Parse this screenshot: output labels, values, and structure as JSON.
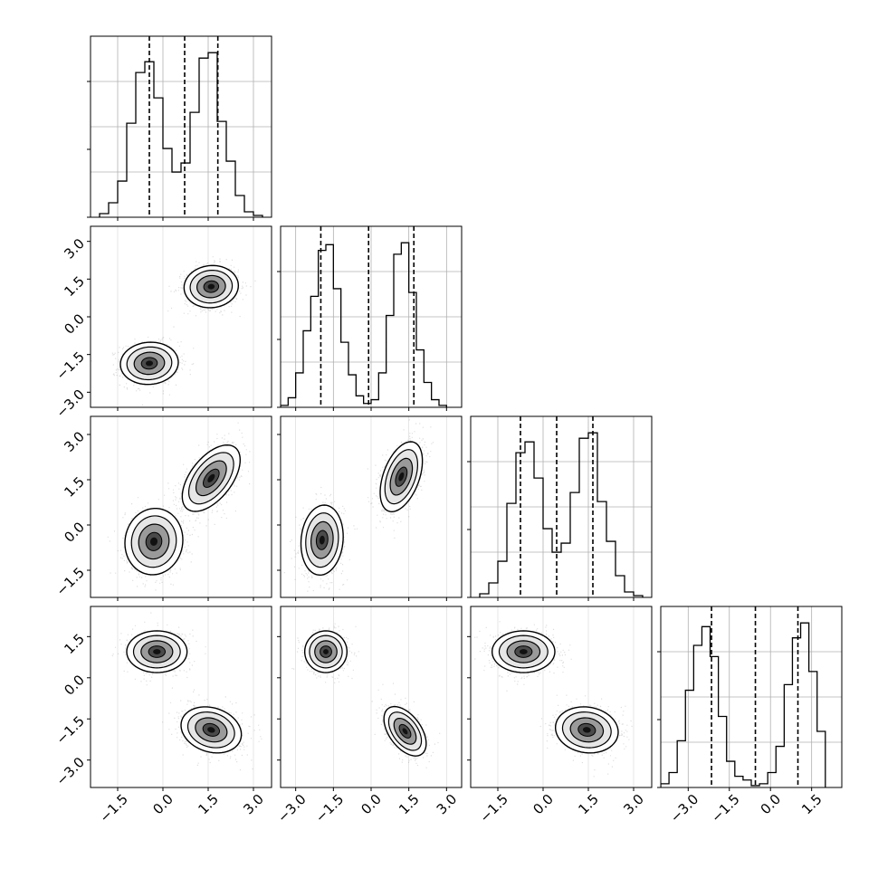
{
  "chart_data": {
    "type": "corner",
    "title": "",
    "n_params": 4,
    "parameter_labels": [
      "",
      "",
      "",
      ""
    ],
    "grid": true,
    "colors": {
      "line": "#000000",
      "grid": "#b0b0b0",
      "points": "#000000"
    },
    "ranges": [
      [
        -2.4,
        3.6
      ],
      [
        -3.6,
        3.6
      ],
      [
        -2.4,
        3.6
      ],
      [
        -4.0,
        2.6
      ]
    ],
    "x_tick_labels": [
      [
        "−1.5",
        "0.0",
        "1.5",
        "3.0"
      ],
      [
        "−3.0",
        "−1.5",
        "0.0",
        "1.5",
        "3.0"
      ],
      [
        "−1.5",
        "0.0",
        "1.5",
        "3.0"
      ],
      [
        "−3.0",
        "−1.5",
        "0.0",
        "1.5"
      ]
    ],
    "x_ticks": [
      [
        -1.5,
        0.0,
        1.5,
        3.0
      ],
      [
        -3.0,
        -1.5,
        0.0,
        1.5,
        3.0
      ],
      [
        -1.5,
        0.0,
        1.5,
        3.0
      ],
      [
        -3.0,
        -1.5,
        0.0,
        1.5
      ]
    ],
    "y_tick_labels": [
      null,
      [
        "3.0",
        "1.5",
        "0.0",
        "−1.5",
        "−3.0"
      ],
      [
        "3.0",
        "1.5",
        "0.0",
        "−1.5"
      ],
      [
        "1.5",
        "0.0",
        "−1.5",
        "−3.0"
      ]
    ],
    "y_ticks": [
      null,
      [
        3.0,
        1.5,
        0.0,
        -1.5,
        -3.0
      ],
      [
        3.0,
        1.5,
        0.0,
        -1.5
      ],
      [
        1.5,
        0.0,
        -1.5,
        -3.0
      ]
    ],
    "histograms": [
      {
        "param": 0,
        "bin_edges": [
          -2.1,
          -1.8,
          -1.5,
          -1.2,
          -0.9,
          -0.6,
          -0.3,
          0.0,
          0.3,
          0.6,
          0.9,
          1.2,
          1.5,
          1.8,
          2.1,
          2.4,
          2.7,
          3.0,
          3.3
        ],
        "counts": [
          2,
          8,
          20,
          52,
          80,
          86,
          66,
          38,
          25,
          30,
          58,
          88,
          91,
          53,
          31,
          12,
          3,
          1
        ],
        "quantiles": [
          -0.45,
          0.72,
          1.82
        ]
      },
      {
        "param": 1,
        "bin_edges": [
          -3.6,
          -3.3,
          -3.0,
          -2.7,
          -2.4,
          -2.1,
          -1.8,
          -1.5,
          -1.2,
          -0.9,
          -0.6,
          -0.3,
          0.0,
          0.3,
          0.6,
          0.9,
          1.2,
          1.5,
          1.8,
          2.1,
          2.4,
          2.7,
          3.0
        ],
        "counts": [
          1,
          5,
          18,
          40,
          58,
          82,
          85,
          62,
          34,
          17,
          6,
          2,
          4,
          18,
          48,
          80,
          86,
          60,
          30,
          13,
          4,
          1
        ],
        "quantiles": [
          -2.0,
          -0.1,
          1.7
        ]
      },
      {
        "param": 2,
        "bin_edges": [
          -2.1,
          -1.8,
          -1.5,
          -1.2,
          -0.9,
          -0.6,
          -0.3,
          0.0,
          0.3,
          0.6,
          0.9,
          1.2,
          1.5,
          1.8,
          2.1,
          2.4,
          2.7,
          3.0,
          3.3
        ],
        "counts": [
          2,
          8,
          20,
          52,
          80,
          86,
          66,
          38,
          25,
          30,
          58,
          88,
          91,
          53,
          31,
          12,
          3,
          1
        ],
        "quantiles": [
          -0.75,
          0.45,
          1.65
        ]
      },
      {
        "param": 3,
        "bin_edges": [
          -4.0,
          -3.7,
          -3.4,
          -3.1,
          -2.8,
          -2.5,
          -2.2,
          -1.9,
          -1.6,
          -1.3,
          -1.0,
          -0.7,
          -0.4,
          -0.1,
          0.2,
          0.5,
          0.8,
          1.1,
          1.4,
          1.7,
          2.0
        ],
        "counts": [
          2,
          8,
          25,
          52,
          76,
          86,
          70,
          38,
          14,
          6,
          4,
          1,
          2,
          8,
          22,
          55,
          80,
          88,
          62,
          30
        ],
        "quantiles": [
          -2.15,
          -0.55,
          1.0
        ]
      }
    ],
    "scatter_panels": [
      {
        "row": 1,
        "col": 0,
        "modes": [
          {
            "center": [
              -0.45,
              -1.85
            ],
            "sigma": [
              0.48,
              0.42
            ],
            "rho": 0.05
          },
          {
            "center": [
              1.6,
              1.2
            ],
            "sigma": [
              0.45,
              0.42
            ],
            "rho": 0.05
          }
        ]
      },
      {
        "row": 2,
        "col": 0,
        "modes": [
          {
            "center": [
              -0.3,
              -0.55
            ],
            "sigma": [
              0.48,
              0.55
            ],
            "rho": 0.05
          },
          {
            "center": [
              1.6,
              1.55
            ],
            "sigma": [
              0.48,
              0.55
            ],
            "rho": 0.55
          }
        ]
      },
      {
        "row": 2,
        "col": 1,
        "modes": [
          {
            "center": [
              -1.95,
              -0.5
            ],
            "sigma": [
              0.42,
              0.58
            ],
            "rho": 0.1
          },
          {
            "center": [
              1.2,
              1.6
            ],
            "sigma": [
              0.42,
              0.58
            ],
            "rho": 0.45
          }
        ]
      },
      {
        "row": 3,
        "col": 0,
        "modes": [
          {
            "center": [
              -0.2,
              0.95
            ],
            "sigma": [
              0.5,
              0.38
            ],
            "rho": 0.0
          },
          {
            "center": [
              1.6,
              -1.9
            ],
            "sigma": [
              0.5,
              0.42
            ],
            "rho": -0.2
          }
        ]
      },
      {
        "row": 3,
        "col": 1,
        "modes": [
          {
            "center": [
              -1.8,
              0.95
            ],
            "sigma": [
              0.42,
              0.38
            ],
            "rho": 0.0
          },
          {
            "center": [
              1.35,
              -1.95
            ],
            "sigma": [
              0.42,
              0.45
            ],
            "rho": -0.5
          }
        ]
      },
      {
        "row": 3,
        "col": 2,
        "modes": [
          {
            "center": [
              -0.65,
              0.95
            ],
            "sigma": [
              0.52,
              0.38
            ],
            "rho": 0.0
          },
          {
            "center": [
              1.45,
              -1.9
            ],
            "sigma": [
              0.52,
              0.42
            ],
            "rho": -0.1
          }
        ]
      }
    ]
  }
}
